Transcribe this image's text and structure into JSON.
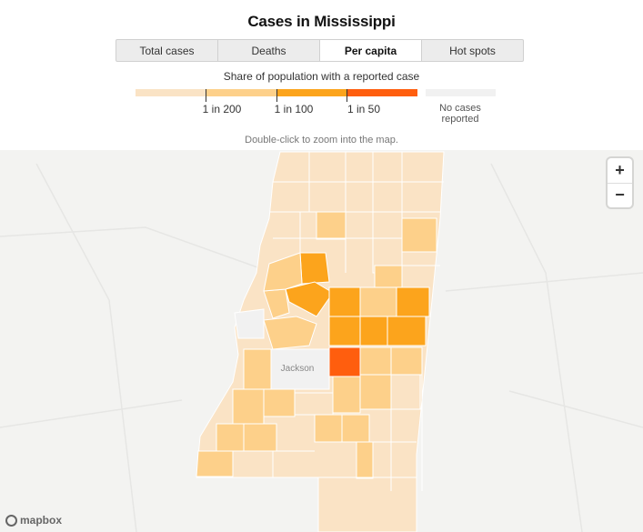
{
  "title": "Cases in Mississippi",
  "tabs": [
    {
      "label": "Total cases",
      "active": false
    },
    {
      "label": "Deaths",
      "active": false
    },
    {
      "label": "Per capita",
      "active": true
    },
    {
      "label": "Hot spots",
      "active": false
    }
  ],
  "legend": {
    "title": "Share of population with a reported case",
    "ticks": [
      "1 in 200",
      "1 in 100",
      "1 in 50"
    ],
    "no_data": "No cases reported",
    "colors": [
      "#fae3c5",
      "#fdd08a",
      "#fca41c",
      "#ff5e0e",
      "#f1f1f1"
    ]
  },
  "hint": "Double-click to zoom into the map.",
  "map": {
    "city_label": "Jackson",
    "zoom_in": "+",
    "zoom_out": "−",
    "attribution": "mapbox"
  }
}
